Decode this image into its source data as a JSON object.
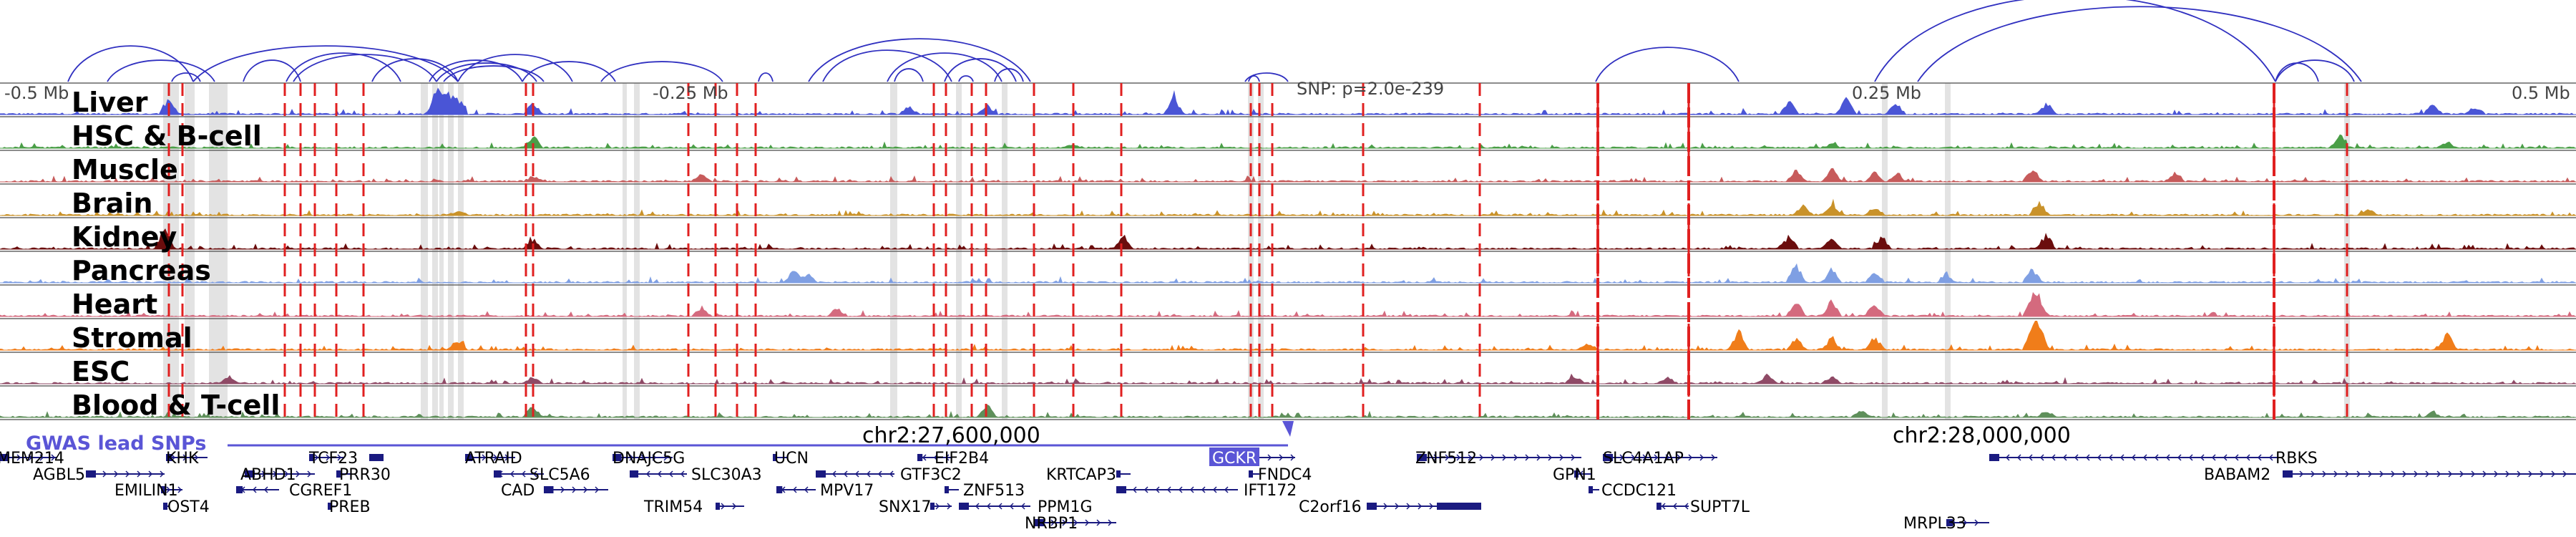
{
  "axis": {
    "left_label": "-0.5 Mb",
    "mid_left_label": "-0.25 Mb",
    "snp_label": "SNP: p=2.0e-239",
    "mid_right_label": "0.25 Mb",
    "right_label": "0.5 Mb"
  },
  "tracks": [
    {
      "name": "Liver",
      "color": "#4a55d6"
    },
    {
      "name": "HSC & B-cell",
      "color": "#4a9e47"
    },
    {
      "name": "Muscle",
      "color": "#c75b5b"
    },
    {
      "name": "Brain",
      "color": "#c9922a"
    },
    {
      "name": "Kidney",
      "color": "#6b0d0d"
    },
    {
      "name": "Pancreas",
      "color": "#7f9fe3"
    },
    {
      "name": "Heart",
      "color": "#d46a7e"
    },
    {
      "name": "Stromal",
      "color": "#f07d1a"
    },
    {
      "name": "ESC",
      "color": "#8f4a66"
    },
    {
      "name": "Blood & T-cell",
      "color": "#5e8f5a"
    }
  ],
  "gwas_label": "GWAS lead SNPs",
  "chr_labels": {
    "left": "chr2:27,600,000",
    "right": "chr2:28,000,000"
  },
  "highlight_gene": "GCKR",
  "colors": {
    "gwas": "#5a55d6",
    "gene": "#1a1a80",
    "snp_line": "#e02020",
    "arc": "#3030c0"
  },
  "genes": [
    {
      "name": "MEM214",
      "row": 0
    },
    {
      "name": "KHK",
      "row": 0
    },
    {
      "name": "TCF23",
      "row": 0
    },
    {
      "name": "ATRAID",
      "row": 0
    },
    {
      "name": "DNAJC5G",
      "row": 0
    },
    {
      "name": "UCN",
      "row": 0
    },
    {
      "name": "EIF2B4",
      "row": 0
    },
    {
      "name": "GCKR",
      "row": 0
    },
    {
      "name": "ZNF512",
      "row": 0
    },
    {
      "name": "SLC4A1AP",
      "row": 0
    },
    {
      "name": "RBKS",
      "row": 0
    },
    {
      "name": "AGBL5",
      "row": 1
    },
    {
      "name": "ABHD1",
      "row": 1
    },
    {
      "name": "PRR30",
      "row": 1
    },
    {
      "name": "SLC5A6",
      "row": 1
    },
    {
      "name": "SLC30A3",
      "row": 1
    },
    {
      "name": "GTF3C2",
      "row": 1
    },
    {
      "name": "KRTCAP3",
      "row": 1
    },
    {
      "name": "FNDC4",
      "row": 1
    },
    {
      "name": "GPN1",
      "row": 1
    },
    {
      "name": "BABAM2",
      "row": 1
    },
    {
      "name": "EMILIN1",
      "row": 2
    },
    {
      "name": "CGREF1",
      "row": 2
    },
    {
      "name": "CAD",
      "row": 2
    },
    {
      "name": "MPV17",
      "row": 2
    },
    {
      "name": "ZNF513",
      "row": 2
    },
    {
      "name": "IFT172",
      "row": 2
    },
    {
      "name": "CCDC121",
      "row": 2
    },
    {
      "name": "OST4",
      "row": 3
    },
    {
      "name": "PREB",
      "row": 3
    },
    {
      "name": "TRIM54",
      "row": 3
    },
    {
      "name": "SNX17",
      "row": 3
    },
    {
      "name": "PPM1G",
      "row": 3
    },
    {
      "name": "C2orf16",
      "row": 3
    },
    {
      "name": "SUPT7L",
      "row": 3
    },
    {
      "name": "NRBP1",
      "row": 4
    },
    {
      "name": "MRPL33",
      "row": 4
    }
  ]
}
